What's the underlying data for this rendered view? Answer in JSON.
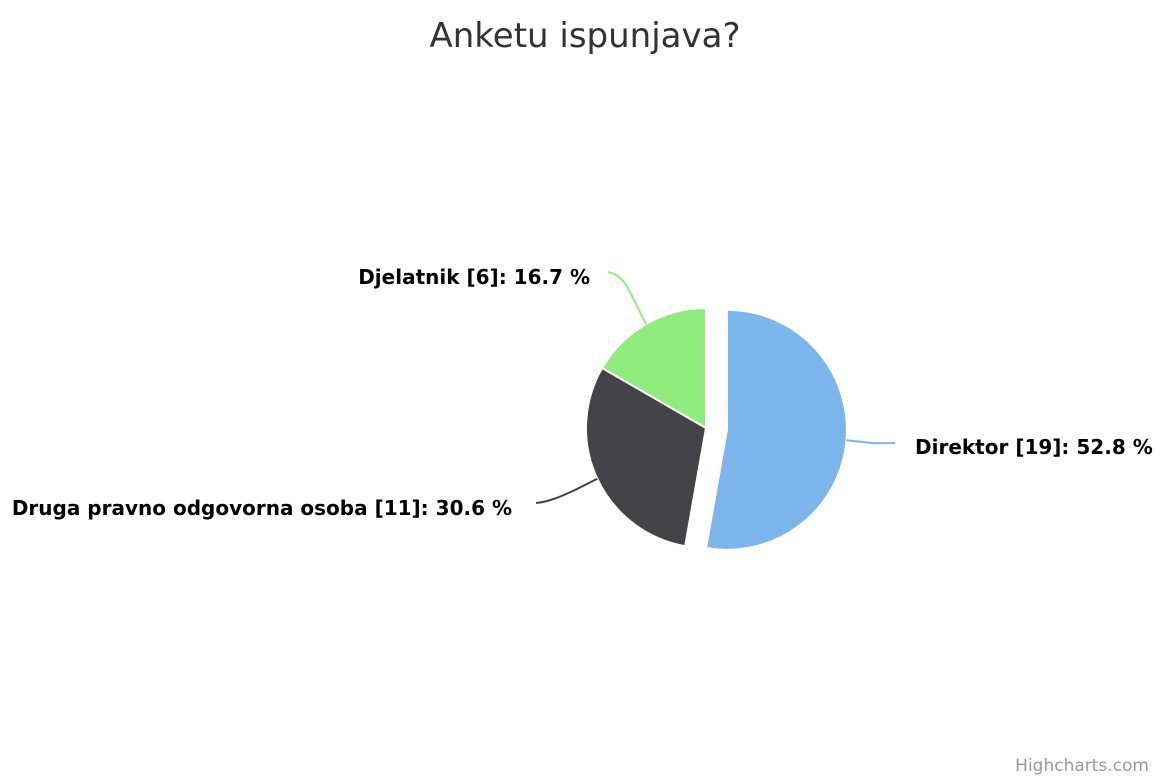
{
  "chart_data": {
    "type": "pie",
    "title": "Anketu ispunjava?",
    "slices": [
      {
        "name": "Direktor",
        "count": 19,
        "percent": 52.8,
        "color": "#7cb5ec",
        "label": "Direktor [19]: 52.8 %",
        "sliced": true
      },
      {
        "name": "Druga pravno odgovorna osoba",
        "count": 11,
        "percent": 30.6,
        "color": "#434348",
        "label": "Druga pravno odgovorna osoba [11]: 30.6 %",
        "sliced": false
      },
      {
        "name": "Djelatnik",
        "count": 6,
        "percent": 16.7,
        "color": "#90ed7d",
        "label": "Djelatnik [6]: 16.7 %",
        "sliced": false
      }
    ],
    "credits": "Highcharts.com"
  }
}
